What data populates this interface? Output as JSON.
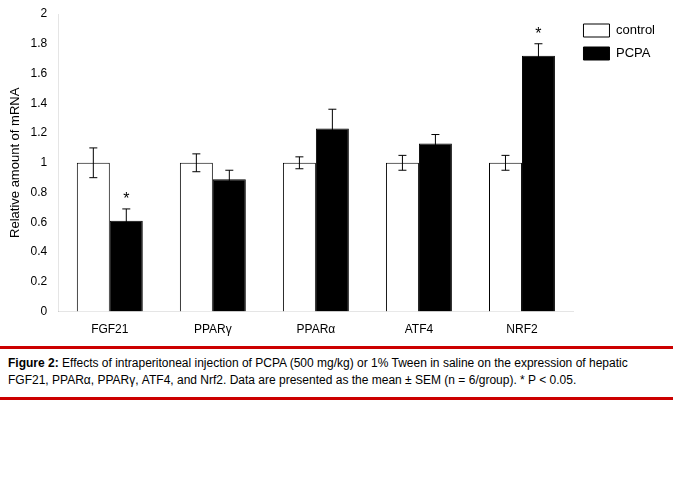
{
  "chart_data": {
    "type": "bar",
    "categories": [
      "FGF21",
      "PPARγ",
      "PPARα",
      "ATF4",
      "NRF2"
    ],
    "series": [
      {
        "name": "control",
        "color": "#ffffff",
        "values": [
          1.0,
          1.0,
          1.0,
          1.0,
          1.0
        ],
        "errors": [
          0.1,
          0.06,
          0.04,
          0.05,
          0.05
        ]
      },
      {
        "name": "PCPA",
        "color": "#000000",
        "values": [
          0.61,
          0.89,
          1.23,
          1.13,
          1.72
        ],
        "errors": [
          0.08,
          0.06,
          0.13,
          0.06,
          0.08
        ]
      }
    ],
    "ylabel": "Relative amount of mRNA",
    "ylim": [
      0,
      2.0
    ],
    "yticks": [
      0,
      0.2,
      0.4,
      0.6,
      0.8,
      1.0,
      1.2,
      1.4,
      1.6,
      1.8,
      2.0
    ],
    "grid": false,
    "legend": "upper right",
    "annotations": [
      {
        "text": "*",
        "category": "FGF21",
        "series": "PCPA"
      },
      {
        "text": "*",
        "category": "NRF2",
        "series": "PCPA"
      }
    ],
    "caption": {
      "bold": "Figure 2:",
      "text": " Effects of intraperitoneal injection of PCPA (500 mg/kg) or 1% Tween in saline on the expression of hepatic FGF21, PPARα, PPARγ, ATF4, and Nrf2. Data are presented as the mean ± SEM (n = 6/group). * P < 0.05.",
      "color": "#cc0000"
    }
  }
}
